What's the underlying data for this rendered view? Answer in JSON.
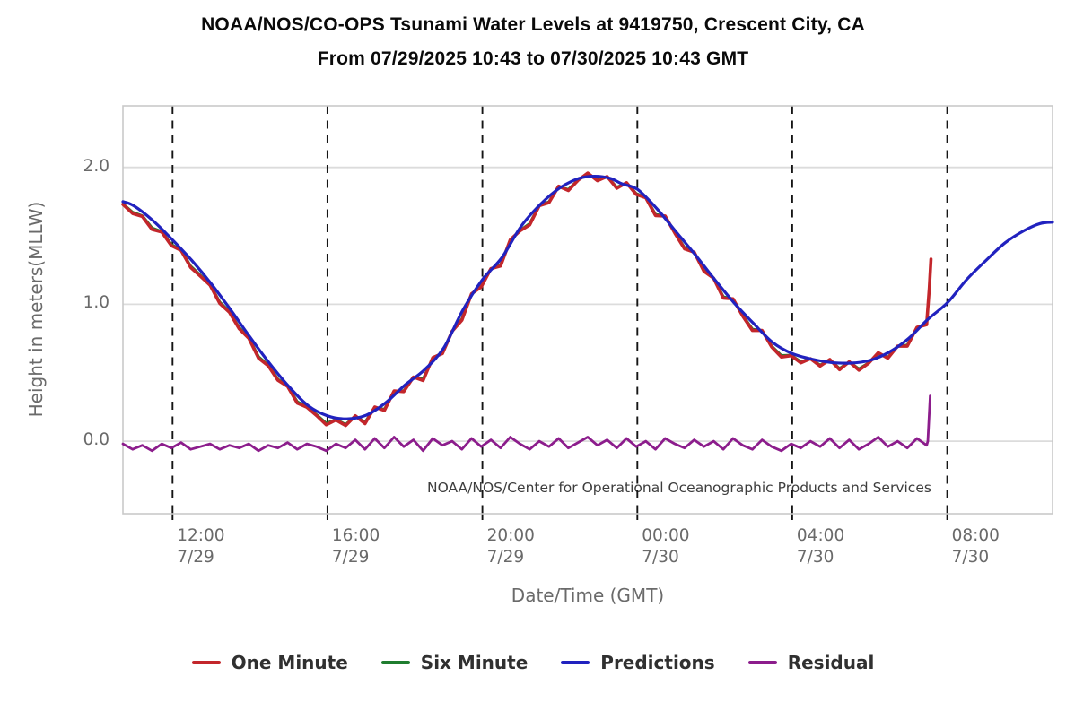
{
  "watermark": "NOAA/NOS/Center for Operational Oceanographic Products and Services",
  "axes": {
    "y_label": "Height in meters(MLLW)",
    "x_label": "Date/Time (GMT)"
  },
  "legend": [
    {
      "label": "One Minute",
      "color": "#c3262b"
    },
    {
      "label": "Six Minute",
      "color": "#1f7d2f"
    },
    {
      "label": "Predictions",
      "color": "#2122bf"
    },
    {
      "label": "Residual",
      "color": "#8c1d8c"
    }
  ],
  "colors": {
    "grid_h": "#dcdcdc",
    "grid_v_dashed": "#151515",
    "frame": "#c9c9c9",
    "axis_text": "#6a6a6a",
    "watermark_text": "#3d3d3d"
  },
  "chart_data": {
    "type": "line",
    "title": "NOAA/NOS/CO-OPS Tsunami Water Levels at 9419750, Crescent City, CA",
    "subtitle": "From 07/29/2025 10:43 to 07/30/2025 10:43 GMT",
    "xlabel": "Date/Time (GMT)",
    "ylabel": "Height in meters(MLLW)",
    "x_unit_note": "hours GMT since 07/29/2025 00:00; values >= 24 are on 07/30",
    "xlim": [
      10.72,
      34.72
    ],
    "ylim": [
      -0.53,
      2.45
    ],
    "grid": {
      "horizontal": "solid-light",
      "vertical": "dashed-black"
    },
    "legend_position": "bottom",
    "y_ticks": [
      {
        "v": 0.0,
        "label": "0.0"
      },
      {
        "v": 1.0,
        "label": "1.0"
      },
      {
        "v": 2.0,
        "label": "2.0"
      }
    ],
    "x_ticks": [
      {
        "t": 12,
        "time": "12:00",
        "date": "7/29"
      },
      {
        "t": 16,
        "time": "16:00",
        "date": "7/29"
      },
      {
        "t": 20,
        "time": "20:00",
        "date": "7/29"
      },
      {
        "t": 24,
        "time": "00:00",
        "date": "7/30"
      },
      {
        "t": 28,
        "time": "04:00",
        "date": "7/30"
      },
      {
        "t": 32,
        "time": "08:00",
        "date": "7/30"
      }
    ],
    "series": {
      "predictions": {
        "name": "Predictions",
        "color": "#2122bf",
        "width": 3.2,
        "points": [
          [
            10.72,
            1.75
          ],
          [
            11.0,
            1.72
          ],
          [
            11.5,
            1.61
          ],
          [
            12.0,
            1.47
          ],
          [
            12.5,
            1.32
          ],
          [
            13.0,
            1.15
          ],
          [
            13.5,
            0.96
          ],
          [
            14.0,
            0.76
          ],
          [
            14.5,
            0.57
          ],
          [
            15.0,
            0.4
          ],
          [
            15.5,
            0.26
          ],
          [
            16.0,
            0.185
          ],
          [
            16.5,
            0.163
          ],
          [
            17.0,
            0.19
          ],
          [
            17.5,
            0.28
          ],
          [
            18.0,
            0.41
          ],
          [
            18.5,
            0.52
          ],
          [
            19.0,
            0.68
          ],
          [
            19.5,
            0.96
          ],
          [
            20.0,
            1.18
          ],
          [
            20.5,
            1.34
          ],
          [
            21.0,
            1.57
          ],
          [
            21.5,
            1.73
          ],
          [
            22.0,
            1.85
          ],
          [
            22.5,
            1.92
          ],
          [
            22.9,
            1.935
          ],
          [
            23.3,
            1.92
          ],
          [
            23.6,
            1.88
          ],
          [
            24.0,
            1.84
          ],
          [
            24.5,
            1.7
          ],
          [
            25.0,
            1.53
          ],
          [
            25.5,
            1.36
          ],
          [
            26.0,
            1.18
          ],
          [
            26.5,
            1.01
          ],
          [
            27.0,
            0.86
          ],
          [
            27.5,
            0.72
          ],
          [
            28.0,
            0.64
          ],
          [
            28.5,
            0.6
          ],
          [
            29.0,
            0.575
          ],
          [
            29.5,
            0.57
          ],
          [
            30.0,
            0.59
          ],
          [
            30.5,
            0.65
          ],
          [
            31.0,
            0.75
          ],
          [
            31.5,
            0.89
          ],
          [
            32.0,
            1.01
          ],
          [
            32.5,
            1.18
          ],
          [
            33.0,
            1.32
          ],
          [
            33.5,
            1.45
          ],
          [
            34.0,
            1.54
          ],
          [
            34.4,
            1.59
          ],
          [
            34.72,
            1.6
          ]
        ]
      },
      "residual": {
        "name": "Residual",
        "color": "#8c1d8c",
        "width": 2.8,
        "t0": 10.72,
        "dt": 0.25,
        "values": [
          -0.02,
          -0.06,
          -0.03,
          -0.07,
          -0.02,
          -0.05,
          -0.01,
          -0.06,
          -0.04,
          -0.02,
          -0.06,
          -0.03,
          -0.05,
          -0.02,
          -0.07,
          -0.03,
          -0.05,
          -0.01,
          -0.06,
          -0.02,
          -0.04,
          -0.07,
          -0.02,
          -0.05,
          0.01,
          -0.06,
          0.02,
          -0.05,
          0.03,
          -0.04,
          0.01,
          -0.07,
          0.02,
          -0.03,
          0.0,
          -0.06,
          0.02,
          -0.04,
          0.01,
          -0.05,
          0.03,
          -0.02,
          -0.06,
          0.0,
          -0.04,
          0.02,
          -0.05,
          -0.01,
          0.03,
          -0.03,
          0.01,
          -0.05,
          0.02,
          -0.04,
          0.0,
          -0.06,
          0.02,
          -0.02,
          -0.05,
          0.01,
          -0.04,
          0.0,
          -0.06,
          0.02,
          -0.03,
          -0.06,
          0.01,
          -0.04,
          -0.07,
          -0.02,
          -0.05,
          0.0,
          -0.04,
          0.02,
          -0.05,
          0.01,
          -0.06,
          -0.02,
          0.03,
          -0.04,
          0.0,
          -0.05,
          0.02,
          -0.03
        ],
        "tail": [
          [
            31.5,
            0.0
          ],
          [
            31.56,
            0.33
          ]
        ]
      },
      "one_minute": {
        "name": "One Minute",
        "color": "#c3262b",
        "width": 3.6,
        "derived": "predictions + residual (observed water level, ends ~07:35 GMT with tsunami spike)",
        "tail": [
          [
            31.5,
            0.97
          ],
          [
            31.54,
            1.12
          ],
          [
            31.58,
            1.33
          ]
        ]
      },
      "six_minute": {
        "name": "Six Minute",
        "color": "#1f7d2f",
        "width": 3.2,
        "derived": "predictions + 0.85*residual (mostly hidden beneath One Minute trace)",
        "t_end": 31.47
      }
    }
  }
}
